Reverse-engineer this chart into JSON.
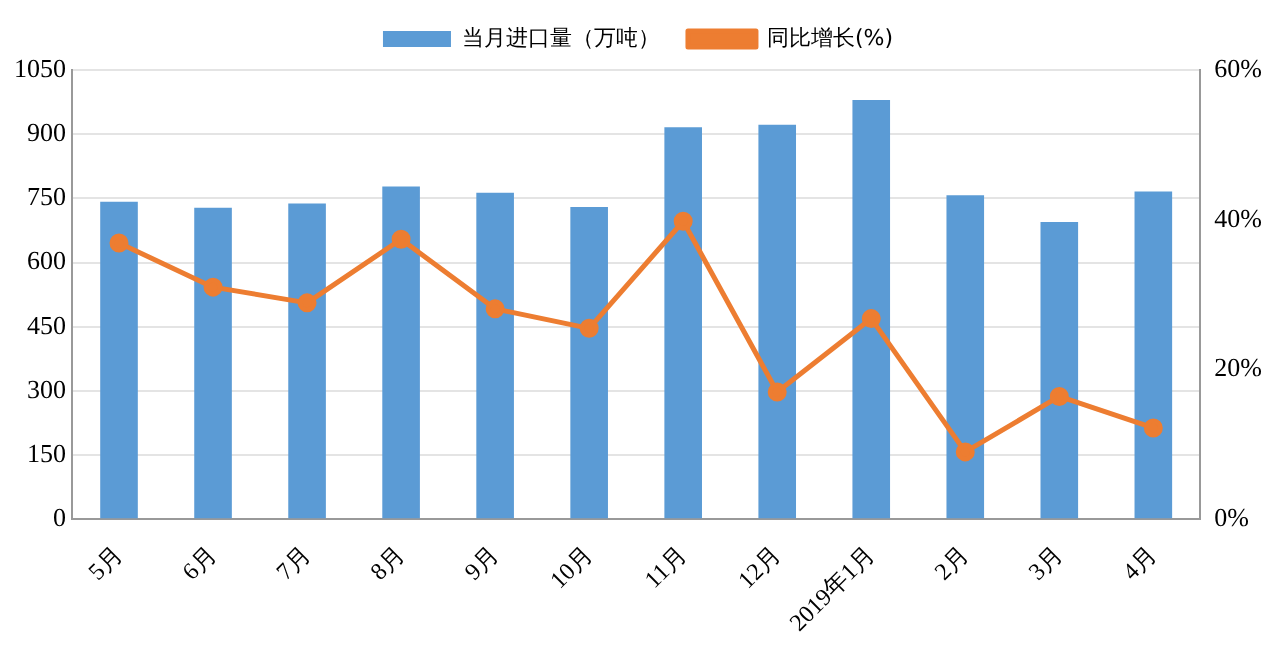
{
  "chart_data": {
    "type": "bar",
    "categories": [
      "5月",
      "6月",
      "7月",
      "8月",
      "9月",
      "10月",
      "11月",
      "12月",
      "2019年1月",
      "2月",
      "3月",
      "4月"
    ],
    "series": [
      {
        "name": "当月进口量（万吨）",
        "color": "#5b9bd5",
        "values": [
          742,
          728,
          738,
          778,
          763,
          730,
          916,
          922,
          980,
          757,
          695,
          766
        ]
      },
      {
        "name": "同比增长(%)",
        "type": "line",
        "axis": "y2",
        "color": "#ed7d31",
        "marker": "circle",
        "values": [
          36.9,
          31,
          28.9,
          37.4,
          28.1,
          25.5,
          39.8,
          17,
          26.8,
          9,
          16.4,
          12.2
        ]
      }
    ],
    "ylim": [
      0,
      1050
    ],
    "yticks": [
      0,
      150,
      300,
      450,
      600,
      750,
      900,
      1050
    ],
    "y2lim": [
      0,
      60
    ],
    "y2ticks": [
      {
        "value": 0,
        "label": "0%"
      },
      {
        "value": 20,
        "label": "20%"
      },
      {
        "value": 40,
        "label": "40%"
      },
      {
        "value": 60,
        "label": "60%"
      }
    ],
    "grid": "y",
    "legend": "top"
  }
}
